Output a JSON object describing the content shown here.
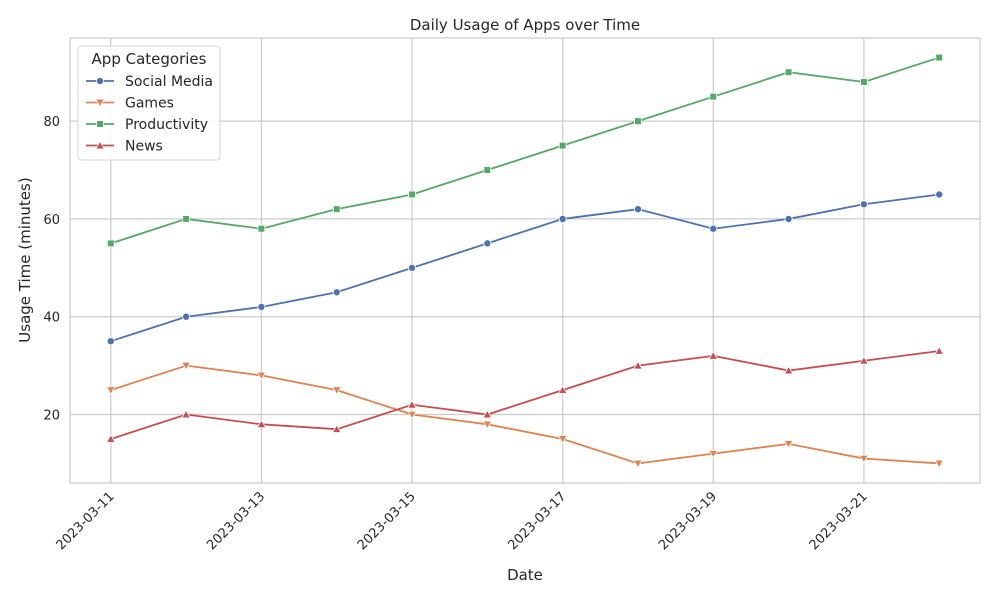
{
  "chart_data": {
    "type": "line",
    "title": "Daily Usage of Apps over Time",
    "xlabel": "Date",
    "ylabel": "Usage Time (minutes)",
    "x": [
      "2023-03-11",
      "2023-03-12",
      "2023-03-13",
      "2023-03-14",
      "2023-03-15",
      "2023-03-16",
      "2023-03-17",
      "2023-03-18",
      "2023-03-19",
      "2023-03-20",
      "2023-03-21",
      "2023-03-22"
    ],
    "x_ticks": [
      "2023-03-11",
      "2023-03-13",
      "2023-03-15",
      "2023-03-17",
      "2023-03-19",
      "2023-03-21"
    ],
    "y_ticks": [
      20,
      40,
      60,
      80
    ],
    "ylim": [
      6,
      97
    ],
    "xlim": [
      "2023-03-10T11:00",
      "2023-03-22T13:00"
    ],
    "grid": true,
    "legend": {
      "title": "App Categories",
      "placement": "top-left"
    },
    "series": [
      {
        "name": "Social Media",
        "color": "#4c72b0",
        "marker": "circle",
        "values": [
          35,
          40,
          42,
          45,
          50,
          55,
          60,
          62,
          58,
          60,
          63,
          65
        ]
      },
      {
        "name": "Games",
        "color": "#dd8452",
        "marker": "triangle-down",
        "values": [
          25,
          30,
          28,
          25,
          20,
          18,
          15,
          10,
          12,
          14,
          11,
          10
        ]
      },
      {
        "name": "Productivity",
        "color": "#55a868",
        "marker": "square",
        "values": [
          55,
          60,
          58,
          62,
          65,
          70,
          75,
          80,
          85,
          90,
          88,
          93
        ]
      },
      {
        "name": "News",
        "color": "#c44e52",
        "marker": "triangle-up",
        "values": [
          15,
          20,
          18,
          17,
          22,
          20,
          25,
          30,
          32,
          29,
          31,
          33
        ]
      }
    ]
  }
}
